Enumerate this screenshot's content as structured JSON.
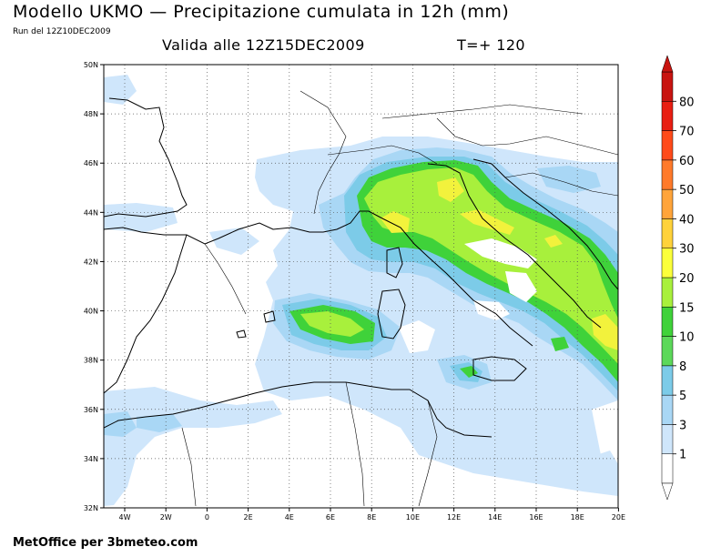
{
  "header": {
    "title": "Modello UKMO — Precipitazione cumulata in 12h (mm)",
    "run": "Run del 12Z10DEC2009",
    "valid": "Valida alle 12Z15DEC2009",
    "timestep": "T=+ 120"
  },
  "footer": {
    "credit": "MetOffice per 3bmeteo.com"
  },
  "map": {
    "lat_labels": [
      "50N",
      "48N",
      "46N",
      "44N",
      "42N",
      "40N",
      "38N",
      "36N",
      "34N",
      "32N"
    ],
    "lon_labels": [
      "4W",
      "2W",
      "0",
      "2E",
      "4E",
      "6E",
      "8E",
      "10E",
      "12E",
      "14E",
      "16E",
      "18E",
      "20E"
    ],
    "grid": true,
    "region": "Mediterraneo centrale"
  },
  "colorbar": {
    "levels": [
      "1",
      "3",
      "5",
      "8",
      "10",
      "15",
      "20",
      "30",
      "40",
      "50",
      "60",
      "70",
      "80"
    ],
    "colors": [
      "#ffffff",
      "#cfe6fb",
      "#a9d7f5",
      "#7ccbe8",
      "#5cd85a",
      "#3fd23a",
      "#a8f03c",
      "#fbff3a",
      "#ffd23a",
      "#ffa43a",
      "#ff7a2a",
      "#ff4a1a",
      "#e81e12",
      "#c81410"
    ]
  },
  "precip_colors": {
    "light": "#cfe6fb",
    "medium": "#a9d7f5",
    "cyan": "#7ccbe8",
    "green": "#3fd23a",
    "lightgreen": "#a8f03c",
    "yellow": "#f2f23c"
  }
}
